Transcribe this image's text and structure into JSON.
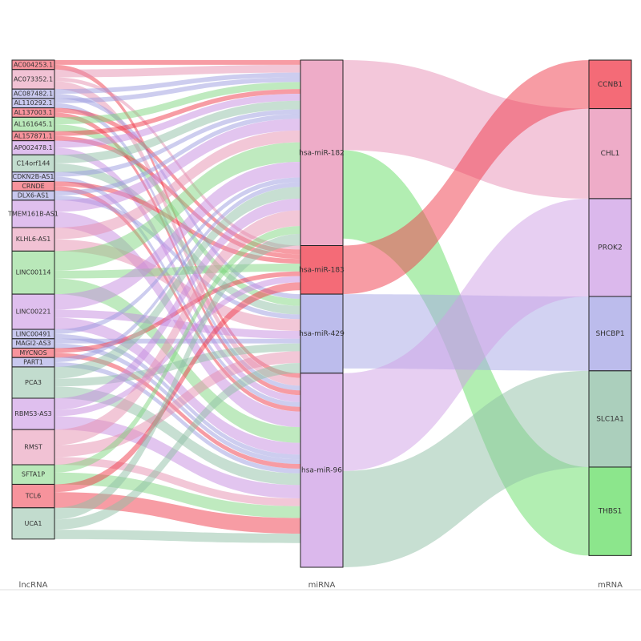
{
  "chart_data": {
    "type": "sankey",
    "column_labels": [
      "lncRNA",
      "miRNA",
      "mRNA"
    ],
    "nodes": [
      {
        "name": "AC004253.1",
        "column": 0,
        "color": "#f03a4a"
      },
      {
        "name": "AC073352.1",
        "column": 0,
        "color": "#e58fb0"
      },
      {
        "name": "AC087482.1",
        "column": 0,
        "color": "#9b9be0"
      },
      {
        "name": "AL110292.1",
        "column": 0,
        "color": "#9b9be0"
      },
      {
        "name": "AL137003.1",
        "column": 0,
        "color": "#f03a4a"
      },
      {
        "name": "AL161645.1",
        "column": 0,
        "color": "#7fd67f"
      },
      {
        "name": "AL157871.1",
        "column": 0,
        "color": "#f03a4a"
      },
      {
        "name": "AP002478.1",
        "column": 0,
        "color": "#c58be0"
      },
      {
        "name": "C14orf144",
        "column": 0,
        "color": "#8fbfa5"
      },
      {
        "name": "CDKN2B-AS1",
        "column": 0,
        "color": "#9b9be0"
      },
      {
        "name": "CRNDE",
        "column": 0,
        "color": "#f03a4a"
      },
      {
        "name": "DLX6-AS1",
        "column": 0,
        "color": "#9b9be0"
      },
      {
        "name": "TMEM161B-AS1",
        "column": 0,
        "color": "#c58be0"
      },
      {
        "name": "KLHL6-AS1",
        "column": 0,
        "color": "#e58fb0"
      },
      {
        "name": "LINC00114",
        "column": 0,
        "color": "#7fd67f"
      },
      {
        "name": "LINC00221",
        "column": 0,
        "color": "#c58be0"
      },
      {
        "name": "LINC00491",
        "column": 0,
        "color": "#9b9be0"
      },
      {
        "name": "MAGI2-AS3",
        "column": 0,
        "color": "#9b9be0"
      },
      {
        "name": "MYCNOS",
        "column": 0,
        "color": "#f03a4a"
      },
      {
        "name": "PART1",
        "column": 0,
        "color": "#9b9be0"
      },
      {
        "name": "PCA3",
        "column": 0,
        "color": "#8fbfa5"
      },
      {
        "name": "RBMS3-AS3",
        "column": 0,
        "color": "#c58be0"
      },
      {
        "name": "RMST",
        "column": 0,
        "color": "#e58fb0"
      },
      {
        "name": "SFTA1P",
        "column": 0,
        "color": "#7fd67f"
      },
      {
        "name": "TCL6",
        "column": 0,
        "color": "#f03a4a"
      },
      {
        "name": "UCA1",
        "column": 0,
        "color": "#8fbfa5"
      },
      {
        "name": "hsa-miR-182",
        "column": 1,
        "color": "#e890b5"
      },
      {
        "name": "hsa-miR-183",
        "column": 1,
        "color": "#f03a4a"
      },
      {
        "name": "hsa-miR-429",
        "column": 1,
        "color": "#a6a6e6"
      },
      {
        "name": "hsa-miR-96",
        "column": 1,
        "color": "#cfa0e6"
      },
      {
        "name": "CCNB1",
        "column": 2,
        "color": "#f03a4a"
      },
      {
        "name": "CHL1",
        "column": 2,
        "color": "#e890b5"
      },
      {
        "name": "PROK2",
        "column": 2,
        "color": "#cfa0e6"
      },
      {
        "name": "SHCBP1",
        "column": 2,
        "color": "#a6a6e6"
      },
      {
        "name": "SLC1A1",
        "column": 2,
        "color": "#8fbfa5"
      },
      {
        "name": "THBS1",
        "column": 2,
        "color": "#66dd66"
      }
    ],
    "links": [
      {
        "source": "AC004253.1",
        "target": "hsa-miR-182",
        "value": 6
      },
      {
        "source": "AC004253.1",
        "target": "hsa-miR-96",
        "value": 6
      },
      {
        "source": "AC073352.1",
        "target": "hsa-miR-182",
        "value": 10
      },
      {
        "source": "AC073352.1",
        "target": "hsa-miR-183",
        "value": 5
      },
      {
        "source": "AC073352.1",
        "target": "hsa-miR-96",
        "value": 10
      },
      {
        "source": "AC087482.1",
        "target": "hsa-miR-182",
        "value": 6
      },
      {
        "source": "AC087482.1",
        "target": "hsa-miR-429",
        "value": 6
      },
      {
        "source": "AL110292.1",
        "target": "hsa-miR-182",
        "value": 6
      },
      {
        "source": "AL110292.1",
        "target": "hsa-miR-96",
        "value": 6
      },
      {
        "source": "AL137003.1",
        "target": "hsa-miR-183",
        "value": 6
      },
      {
        "source": "AL137003.1",
        "target": "hsa-miR-96",
        "value": 6
      },
      {
        "source": "AL161645.1",
        "target": "hsa-miR-182",
        "value": 9
      },
      {
        "source": "AL161645.1",
        "target": "hsa-miR-429",
        "value": 9
      },
      {
        "source": "AL157871.1",
        "target": "hsa-miR-182",
        "value": 6
      },
      {
        "source": "AL157871.1",
        "target": "hsa-miR-183",
        "value": 6
      },
      {
        "source": "AP002478.1",
        "target": "hsa-miR-182",
        "value": 9
      },
      {
        "source": "AP002478.1",
        "target": "hsa-miR-96",
        "value": 9
      },
      {
        "source": "C14orf144",
        "target": "hsa-miR-182",
        "value": 11
      },
      {
        "source": "C14orf144",
        "target": "hsa-miR-429",
        "value": 11
      },
      {
        "source": "CDKN2B-AS1",
        "target": "hsa-miR-182",
        "value": 6
      },
      {
        "source": "CDKN2B-AS1",
        "target": "hsa-miR-96",
        "value": 6
      },
      {
        "source": "CRNDE",
        "target": "hsa-miR-183",
        "value": 6
      },
      {
        "source": "CRNDE",
        "target": "hsa-miR-96",
        "value": 6
      },
      {
        "source": "DLX6-AS1",
        "target": "hsa-miR-182",
        "value": 6
      },
      {
        "source": "DLX6-AS1",
        "target": "hsa-miR-429",
        "value": 6
      },
      {
        "source": "TMEM161B-AS1",
        "target": "hsa-miR-182",
        "value": 15
      },
      {
        "source": "TMEM161B-AS1",
        "target": "hsa-miR-96",
        "value": 20
      },
      {
        "source": "KLHL6-AS1",
        "target": "hsa-miR-182",
        "value": 15
      },
      {
        "source": "KLHL6-AS1",
        "target": "hsa-miR-429",
        "value": 15
      },
      {
        "source": "LINC00114",
        "target": "hsa-miR-182",
        "value": 25
      },
      {
        "source": "LINC00114",
        "target": "hsa-miR-183",
        "value": 10
      },
      {
        "source": "LINC00114",
        "target": "hsa-miR-96",
        "value": 20
      },
      {
        "source": "LINC00221",
        "target": "hsa-miR-182",
        "value": 20
      },
      {
        "source": "LINC00221",
        "target": "hsa-miR-429",
        "value": 10
      },
      {
        "source": "LINC00221",
        "target": "hsa-miR-96",
        "value": 15
      },
      {
        "source": "LINC00491",
        "target": "hsa-miR-182",
        "value": 6
      },
      {
        "source": "LINC00491",
        "target": "hsa-miR-96",
        "value": 6
      },
      {
        "source": "MAGI2-AS3",
        "target": "hsa-miR-429",
        "value": 6
      },
      {
        "source": "MAGI2-AS3",
        "target": "hsa-miR-96",
        "value": 6
      },
      {
        "source": "MYCNOS",
        "target": "hsa-miR-183",
        "value": 6
      },
      {
        "source": "MYCNOS",
        "target": "hsa-miR-96",
        "value": 6
      },
      {
        "source": "PART1",
        "target": "hsa-miR-182",
        "value": 6
      },
      {
        "source": "PART1",
        "target": "hsa-miR-96",
        "value": 6
      },
      {
        "source": "PCA3",
        "target": "hsa-miR-182",
        "value": 15
      },
      {
        "source": "PCA3",
        "target": "hsa-miR-429",
        "value": 10
      },
      {
        "source": "PCA3",
        "target": "hsa-miR-96",
        "value": 15
      },
      {
        "source": "RBMS3-AS3",
        "target": "hsa-miR-182",
        "value": 15
      },
      {
        "source": "RBMS3-AS3",
        "target": "hsa-miR-183",
        "value": 8
      },
      {
        "source": "RBMS3-AS3",
        "target": "hsa-miR-96",
        "value": 17
      },
      {
        "source": "RMST",
        "target": "hsa-miR-182",
        "value": 20
      },
      {
        "source": "RMST",
        "target": "hsa-miR-429",
        "value": 15
      },
      {
        "source": "RMST",
        "target": "hsa-miR-96",
        "value": 10
      },
      {
        "source": "SFTA1P",
        "target": "hsa-miR-182",
        "value": 10
      },
      {
        "source": "SFTA1P",
        "target": "hsa-miR-96",
        "value": 15
      },
      {
        "source": "TCL6",
        "target": "hsa-miR-183",
        "value": 10
      },
      {
        "source": "TCL6",
        "target": "hsa-miR-96",
        "value": 20
      },
      {
        "source": "UCA1",
        "target": "hsa-miR-182",
        "value": 15
      },
      {
        "source": "UCA1",
        "target": "hsa-miR-429",
        "value": 13
      },
      {
        "source": "UCA1",
        "target": "hsa-miR-96",
        "value": 12
      },
      {
        "source": "hsa-miR-182",
        "target": "CHL1",
        "value": 115
      },
      {
        "source": "hsa-miR-182",
        "target": "THBS1",
        "value": 113
      },
      {
        "source": "hsa-miR-183",
        "target": "CCNB1",
        "value": 62
      },
      {
        "source": "hsa-miR-429",
        "target": "SHCBP1",
        "value": 95
      },
      {
        "source": "hsa-miR-96",
        "target": "PROK2",
        "value": 125
      },
      {
        "source": "hsa-miR-96",
        "target": "SLC1A1",
        "value": 123
      }
    ]
  }
}
